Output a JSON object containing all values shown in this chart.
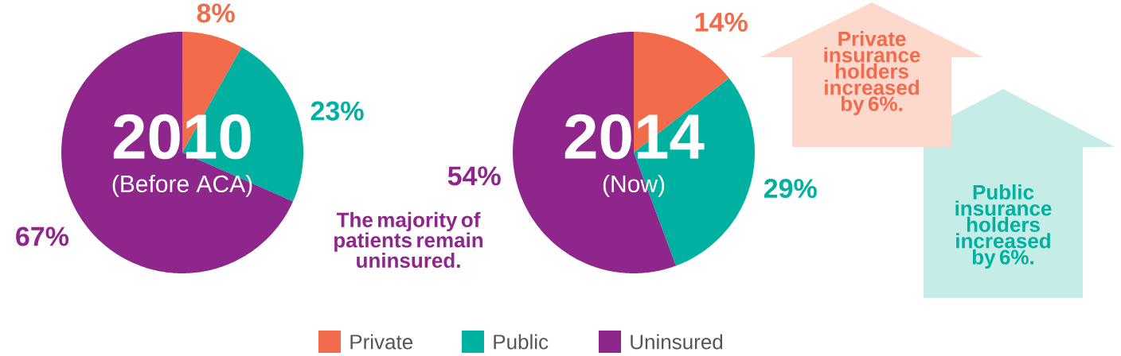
{
  "chart_data": [
    {
      "type": "pie",
      "title": "2010",
      "subtitle": "(Before ACA)",
      "categories": [
        "Private",
        "Public",
        "Uninsured"
      ],
      "values": [
        8,
        23,
        67
      ],
      "colors": [
        "#f26b4b",
        "#00b0a0",
        "#8e268c"
      ],
      "value_labels": [
        "8%",
        "23%",
        "67%"
      ],
      "legend": "bottom"
    },
    {
      "type": "pie",
      "title": "2014",
      "subtitle": "(Now)",
      "categories": [
        null,
        null,
        null
      ],
      "values": [
        14,
        29,
        54
      ],
      "colors": [
        "#f26b4b",
        "#00b0a0",
        "#8e268c"
      ],
      "value_labels": [
        "14%",
        "29%",
        "54%"
      ],
      "annotations": [
        "The majority of patients remain uninsured.",
        "Private insurance holders increased by 6%.",
        "Public insurance holders increased by 6%."
      ]
    }
  ]
}
